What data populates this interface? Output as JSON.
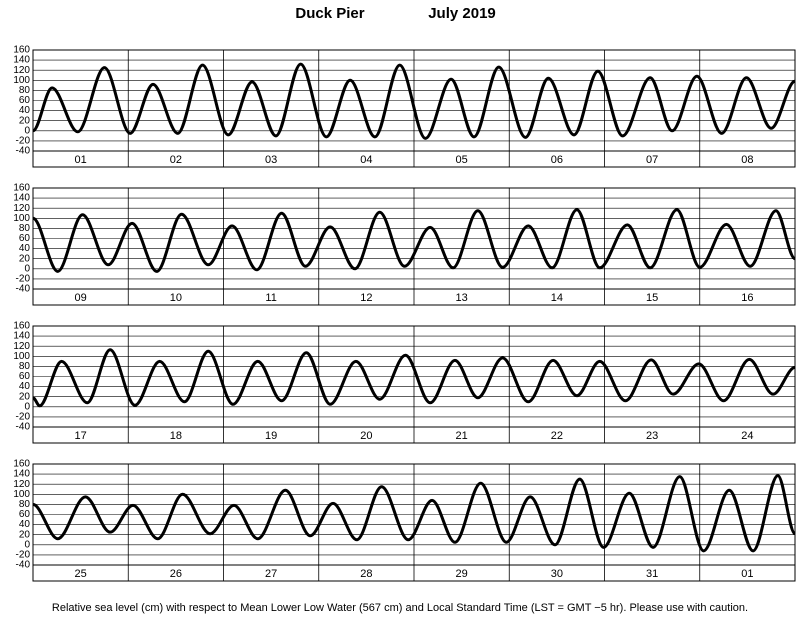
{
  "title": "Duck Pier",
  "subtitle": "July   2019",
  "footnote": "Relative sea level (cm) with respect to Mean Lower Low Water (567 cm) and Local Standard Time (LST = GMT −5 hr). Please use with caution.",
  "chart_data": [
    {
      "type": "line",
      "categories": [
        "01",
        "02",
        "03",
        "04",
        "05",
        "06",
        "07",
        "08"
      ],
      "x": [
        0,
        0.2,
        0.47,
        0.75,
        1.02,
        1.26,
        1.52,
        1.78,
        2.05,
        2.3,
        2.55,
        2.81,
        3.08,
        3.33,
        3.59,
        3.85,
        4.12,
        4.39,
        4.63,
        4.89,
        5.17,
        5.41,
        5.68,
        5.93,
        6.19,
        6.48,
        6.71,
        6.97,
        7.23,
        7.49,
        7.75,
        8.0
      ],
      "values": [
        0,
        85,
        -2,
        125,
        -5,
        92,
        -5,
        130,
        -8,
        97,
        -10,
        132,
        -12,
        100,
        -12,
        130,
        -15,
        102,
        -12,
        126,
        -13,
        104,
        -8,
        118,
        -10,
        105,
        0,
        108,
        -5,
        105,
        5,
        98
      ],
      "xlim": [
        0,
        8
      ],
      "ylim": [
        -40,
        160
      ],
      "yticks": [
        -40,
        -20,
        0,
        20,
        40,
        60,
        80,
        100,
        120,
        140,
        160
      ],
      "grid": true,
      "color": "#000000"
    },
    {
      "type": "line",
      "categories": [
        "09",
        "10",
        "11",
        "12",
        "13",
        "14",
        "15",
        "16"
      ],
      "x": [
        0,
        0.26,
        0.52,
        0.79,
        1.04,
        1.3,
        1.56,
        1.84,
        2.09,
        2.35,
        2.61,
        2.86,
        3.12,
        3.38,
        3.64,
        3.9,
        4.17,
        4.41,
        4.67,
        4.93,
        5.2,
        5.45,
        5.71,
        5.95,
        6.24,
        6.48,
        6.76,
        7.0,
        7.28,
        7.53,
        7.8,
        8.0
      ],
      "values": [
        100,
        -5,
        107,
        8,
        90,
        -5,
        108,
        8,
        85,
        -2,
        110,
        5,
        83,
        0,
        112,
        5,
        82,
        2,
        115,
        3,
        85,
        2,
        117,
        2,
        87,
        2,
        117,
        3,
        88,
        5,
        115,
        20
      ],
      "xlim": [
        0,
        8
      ],
      "ylim": [
        -40,
        160
      ],
      "yticks": [
        -40,
        -20,
        0,
        20,
        40,
        60,
        80,
        100,
        120,
        140,
        160
      ],
      "grid": true,
      "color": "#000000"
    },
    {
      "type": "line",
      "categories": [
        "17",
        "18",
        "19",
        "20",
        "21",
        "22",
        "23",
        "24"
      ],
      "x": [
        0,
        0.07,
        0.3,
        0.57,
        0.81,
        1.07,
        1.33,
        1.59,
        1.84,
        2.1,
        2.36,
        2.61,
        2.87,
        3.12,
        3.39,
        3.64,
        3.91,
        4.17,
        4.43,
        4.67,
        4.93,
        5.2,
        5.46,
        5.71,
        5.95,
        6.22,
        6.49,
        6.72,
        6.99,
        7.25,
        7.52,
        7.77,
        8.0
      ],
      "values": [
        18,
        2,
        90,
        8,
        113,
        3,
        90,
        10,
        110,
        5,
        90,
        12,
        107,
        5,
        90,
        15,
        102,
        8,
        92,
        18,
        97,
        10,
        92,
        22,
        90,
        12,
        93,
        25,
        85,
        12,
        94,
        25,
        78
      ],
      "xlim": [
        0,
        8
      ],
      "ylim": [
        -40,
        160
      ],
      "yticks": [
        -40,
        -20,
        0,
        20,
        40,
        60,
        80,
        100,
        120,
        140,
        160
      ],
      "grid": true,
      "color": "#000000"
    },
    {
      "type": "line",
      "categories": [
        "25",
        "26",
        "27",
        "28",
        "29",
        "30",
        "31",
        "01"
      ],
      "x": [
        0,
        0.26,
        0.55,
        0.81,
        1.05,
        1.31,
        1.57,
        1.86,
        2.11,
        2.36,
        2.65,
        2.91,
        3.15,
        3.4,
        3.66,
        3.94,
        4.19,
        4.43,
        4.7,
        4.97,
        5.22,
        5.48,
        5.74,
        5.99,
        6.26,
        6.51,
        6.79,
        7.04,
        7.31,
        7.56,
        7.82,
        8.0
      ],
      "values": [
        80,
        12,
        95,
        25,
        78,
        12,
        100,
        22,
        78,
        12,
        108,
        18,
        82,
        10,
        115,
        10,
        88,
        5,
        122,
        5,
        95,
        0,
        130,
        -5,
        102,
        -5,
        135,
        -12,
        108,
        -12,
        137,
        22
      ],
      "xlim": [
        0,
        8
      ],
      "ylim": [
        -40,
        160
      ],
      "yticks": [
        -40,
        -20,
        0,
        20,
        40,
        60,
        80,
        100,
        120,
        140,
        160
      ],
      "grid": true,
      "color": "#000000"
    }
  ]
}
